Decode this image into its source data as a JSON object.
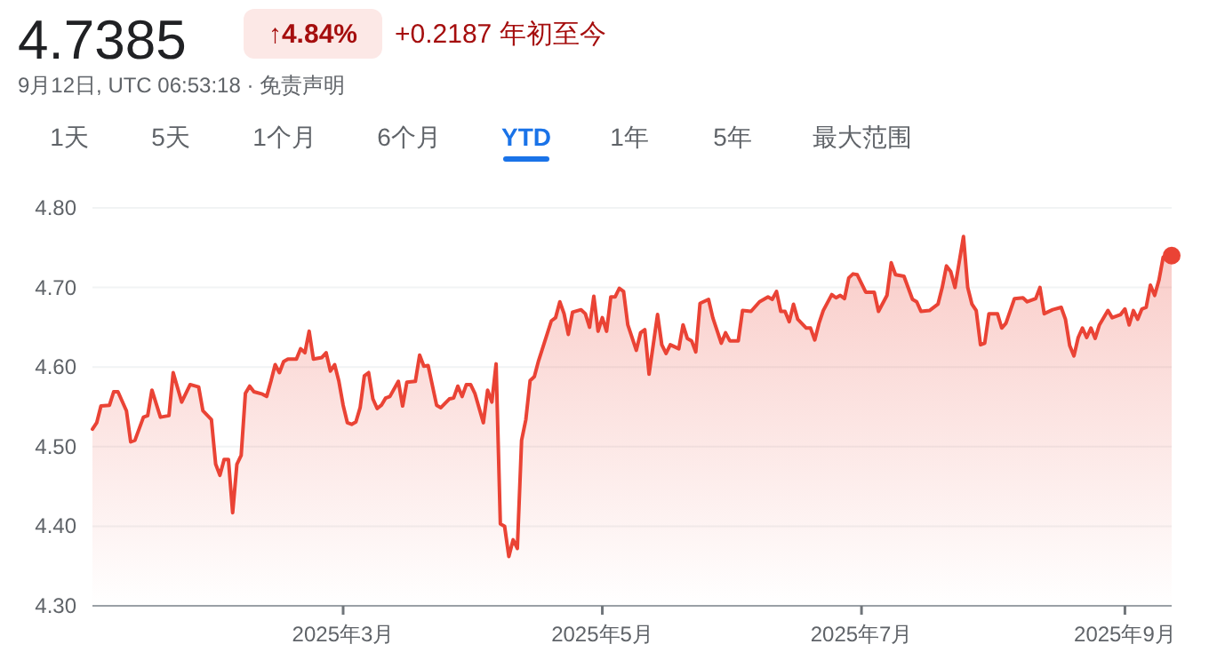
{
  "chart_data": {
    "type": "area",
    "title": "4.7385",
    "subtitle": "9月12日, UTC 06:53:18 · 免责声明",
    "annotations": [
      "↑4.84%",
      "+0.2187 年初至今",
      "1天",
      "5天",
      "1个月",
      "6个月",
      "YTD",
      "1年",
      "5年",
      "最大范围"
    ],
    "xlim": [
      "2025-01-01",
      "2025-09-12"
    ],
    "xticks": [
      {
        "value": "2025-03-01",
        "label": "2025年3月"
      },
      {
        "value": "2025-05-01",
        "label": "2025年5月"
      },
      {
        "value": "2025-07-01",
        "label": "2025年7月"
      },
      {
        "value": "2025-09-01",
        "label": "2025年9月"
      }
    ],
    "ylim": [
      4.3,
      4.8
    ],
    "yticks": [
      {
        "value": 4.3,
        "label": "4.30"
      },
      {
        "value": 4.4,
        "label": "4.40"
      },
      {
        "value": 4.5,
        "label": "4.50"
      },
      {
        "value": 4.6,
        "label": "4.60"
      },
      {
        "value": 4.7,
        "label": "4.70"
      },
      {
        "value": 4.8,
        "label": "4.80"
      }
    ],
    "grid": "y",
    "series": [
      {
        "type": "area",
        "color": "#ea4335",
        "x": [
          "2025-01-01",
          "2025-01-02",
          "2025-01-03",
          "2025-01-05",
          "2025-01-06",
          "2025-01-07",
          "2025-01-09",
          "2025-01-10",
          "2025-01-11",
          "2025-01-13",
          "2025-01-14",
          "2025-01-15",
          "2025-01-17",
          "2025-01-19",
          "2025-01-20",
          "2025-01-22",
          "2025-01-24",
          "2025-01-26",
          "2025-01-27",
          "2025-01-29",
          "2025-01-30",
          "2025-01-31",
          "2025-02-01",
          "2025-02-02",
          "2025-02-03",
          "2025-02-04",
          "2025-02-05",
          "2025-02-06",
          "2025-02-07",
          "2025-02-08",
          "2025-02-10",
          "2025-02-11",
          "2025-02-12",
          "2025-02-13",
          "2025-02-14",
          "2025-02-15",
          "2025-02-16",
          "2025-02-18",
          "2025-02-19",
          "2025-02-20",
          "2025-02-21",
          "2025-02-22",
          "2025-02-24",
          "2025-02-25",
          "2025-02-26",
          "2025-02-27",
          "2025-02-28",
          "2025-03-01",
          "2025-03-02",
          "2025-03-03",
          "2025-03-04",
          "2025-03-05",
          "2025-03-06",
          "2025-03-07",
          "2025-03-08",
          "2025-03-09",
          "2025-03-10",
          "2025-03-11",
          "2025-03-12",
          "2025-03-14",
          "2025-03-15",
          "2025-03-16",
          "2025-03-18",
          "2025-03-19",
          "2025-03-20",
          "2025-03-21",
          "2025-03-23",
          "2025-03-24",
          "2025-03-26",
          "2025-03-27",
          "2025-03-28",
          "2025-03-29",
          "2025-03-30",
          "2025-03-31",
          "2025-04-01",
          "2025-04-03",
          "2025-04-04",
          "2025-04-05",
          "2025-04-06",
          "2025-04-07",
          "2025-04-08",
          "2025-04-09",
          "2025-04-10",
          "2025-04-11",
          "2025-04-12",
          "2025-04-13",
          "2025-04-14",
          "2025-04-15",
          "2025-04-16",
          "2025-04-19",
          "2025-04-20",
          "2025-04-21",
          "2025-04-22",
          "2025-04-23",
          "2025-04-24",
          "2025-04-26",
          "2025-04-27",
          "2025-04-28",
          "2025-04-29",
          "2025-04-30",
          "2025-05-01",
          "2025-05-02",
          "2025-05-03",
          "2025-05-04",
          "2025-05-05",
          "2025-05-06",
          "2025-05-07",
          "2025-05-09",
          "2025-05-10",
          "2025-05-11",
          "2025-05-12",
          "2025-05-14",
          "2025-05-15",
          "2025-05-16",
          "2025-05-17",
          "2025-05-19",
          "2025-05-20",
          "2025-05-21",
          "2025-05-22",
          "2025-05-23",
          "2025-05-24",
          "2025-05-26",
          "2025-05-27",
          "2025-05-29",
          "2025-05-30",
          "2025-05-31",
          "2025-06-02",
          "2025-06-03",
          "2025-06-05",
          "2025-06-07",
          "2025-06-09",
          "2025-06-10",
          "2025-06-11",
          "2025-06-12",
          "2025-06-13",
          "2025-06-14",
          "2025-06-15",
          "2025-06-16",
          "2025-06-18",
          "2025-06-19",
          "2025-06-20",
          "2025-06-21",
          "2025-06-22",
          "2025-06-24",
          "2025-06-25",
          "2025-06-26",
          "2025-06-27",
          "2025-06-28",
          "2025-06-29",
          "2025-06-30",
          "2025-07-02",
          "2025-07-04",
          "2025-07-05",
          "2025-07-07",
          "2025-07-08",
          "2025-07-09",
          "2025-07-11",
          "2025-07-13",
          "2025-07-14",
          "2025-07-15",
          "2025-07-17",
          "2025-07-19",
          "2025-07-20",
          "2025-07-21",
          "2025-07-22",
          "2025-07-23",
          "2025-07-25",
          "2025-07-26",
          "2025-07-27",
          "2025-07-28",
          "2025-07-29",
          "2025-07-30",
          "2025-07-31",
          "2025-08-02",
          "2025-08-03",
          "2025-08-04",
          "2025-08-06",
          "2025-08-08",
          "2025-08-09",
          "2025-08-11",
          "2025-08-12",
          "2025-08-13",
          "2025-08-15",
          "2025-08-17",
          "2025-08-18",
          "2025-08-19",
          "2025-08-20",
          "2025-08-21",
          "2025-08-22",
          "2025-08-23",
          "2025-08-24",
          "2025-08-25",
          "2025-08-26",
          "2025-08-28",
          "2025-08-29",
          "2025-08-31",
          "2025-09-01",
          "2025-09-02",
          "2025-09-03",
          "2025-09-04",
          "2025-09-05",
          "2025-09-06",
          "2025-09-07",
          "2025-09-08",
          "2025-09-09",
          "2025-09-10",
          "2025-09-12"
        ],
        "values": [
          4.522,
          4.53,
          4.551,
          4.552,
          4.569,
          4.569,
          4.545,
          4.506,
          4.508,
          4.537,
          4.539,
          4.571,
          4.537,
          4.539,
          4.593,
          4.556,
          4.578,
          4.575,
          4.545,
          4.534,
          4.478,
          4.464,
          4.484,
          4.484,
          4.417,
          4.478,
          4.489,
          4.567,
          4.576,
          4.569,
          4.566,
          4.563,
          4.582,
          4.603,
          4.593,
          4.607,
          4.61,
          4.61,
          4.623,
          4.618,
          4.645,
          4.61,
          4.612,
          4.618,
          4.595,
          4.603,
          4.582,
          4.552,
          4.53,
          4.528,
          4.531,
          4.549,
          4.589,
          4.593,
          4.56,
          4.548,
          4.552,
          4.561,
          4.563,
          4.582,
          4.551,
          4.581,
          4.582,
          4.615,
          4.601,
          4.602,
          4.552,
          4.549,
          4.56,
          4.561,
          4.576,
          4.563,
          4.578,
          4.578,
          4.567,
          4.53,
          4.571,
          4.556,
          4.604,
          4.403,
          4.4,
          4.362,
          4.383,
          4.372,
          4.508,
          4.534,
          4.583,
          4.588,
          4.608,
          4.658,
          4.662,
          4.682,
          4.667,
          4.641,
          4.669,
          4.672,
          4.667,
          4.65,
          4.689,
          4.645,
          4.662,
          4.645,
          4.688,
          4.688,
          4.699,
          4.695,
          4.653,
          4.621,
          4.643,
          4.647,
          4.591,
          4.666,
          4.628,
          4.617,
          4.628,
          4.623,
          4.653,
          4.636,
          4.633,
          4.619,
          4.68,
          4.685,
          4.662,
          4.63,
          4.643,
          4.633,
          4.633,
          4.671,
          4.67,
          4.682,
          4.688,
          4.685,
          4.695,
          4.67,
          4.67,
          4.657,
          4.679,
          4.66,
          4.649,
          4.649,
          4.634,
          4.655,
          4.671,
          4.691,
          4.687,
          4.69,
          4.686,
          4.712,
          4.717,
          4.716,
          4.694,
          4.694,
          4.67,
          4.69,
          4.731,
          4.716,
          4.714,
          4.685,
          4.682,
          4.67,
          4.671,
          4.679,
          4.7,
          4.727,
          4.72,
          4.7,
          4.764,
          4.7,
          4.679,
          4.671,
          4.628,
          4.63,
          4.667,
          4.667,
          4.649,
          4.655,
          4.686,
          4.687,
          4.682,
          4.686,
          4.7,
          4.667,
          4.672,
          4.675,
          4.66,
          4.627,
          4.614,
          4.637,
          4.649,
          4.637,
          4.649,
          4.636,
          4.653,
          4.671,
          4.662,
          4.666,
          4.673,
          4.653,
          4.671,
          4.66,
          4.673,
          4.675,
          4.703,
          4.69,
          4.709,
          4.738,
          4.74
        ]
      },
      {
        "type": "scatter",
        "color": "#ea4335",
        "marker": "circle",
        "x": [
          "2025-09-12"
        ],
        "values": [
          4.74
        ]
      }
    ]
  }
}
